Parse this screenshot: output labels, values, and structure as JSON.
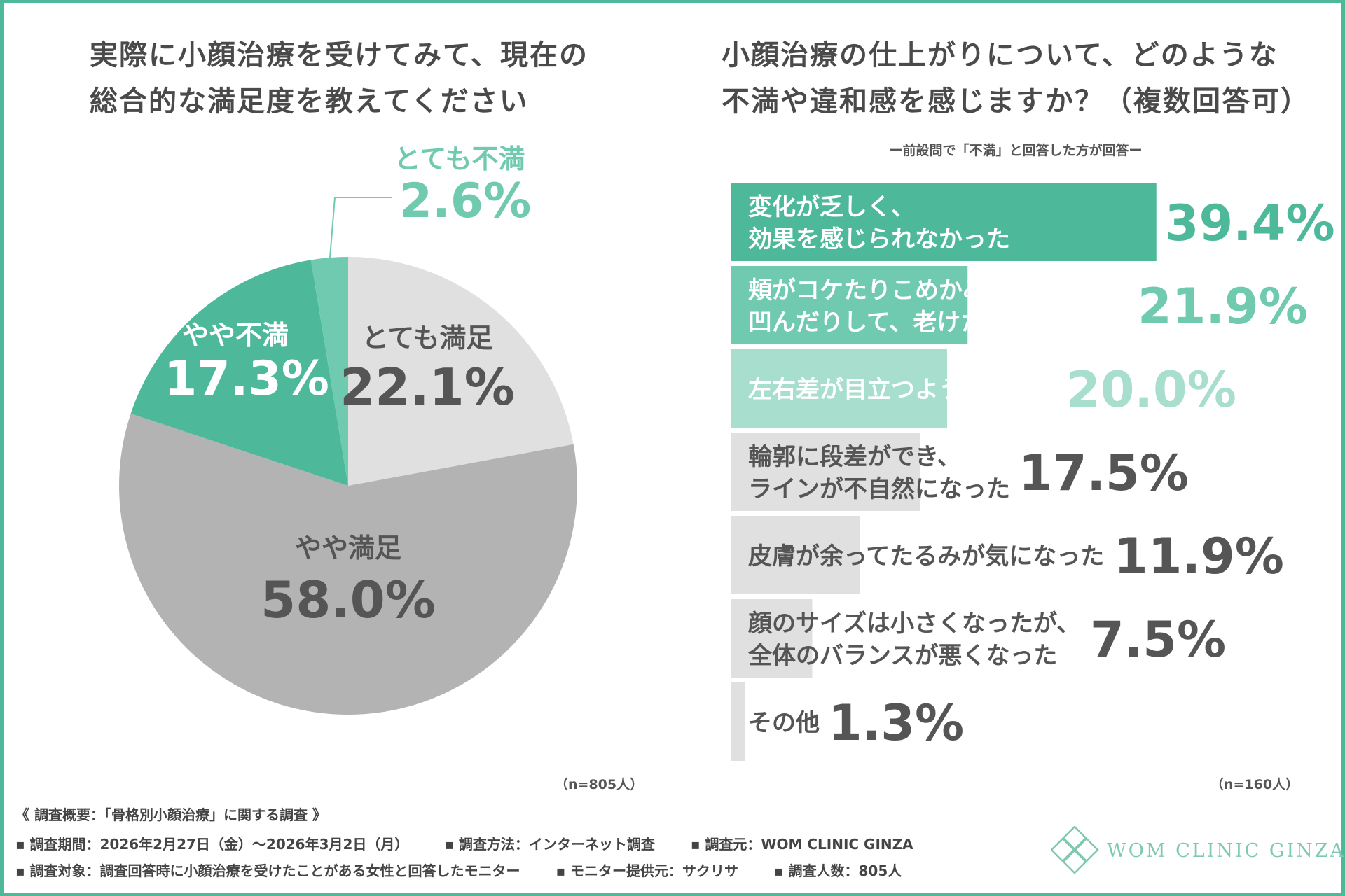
{
  "left_title_line1": "実際に小顔治療を受けてみて、現在の",
  "left_title_line2": "総合的な満足度を教えてください",
  "right_title_line1": "小顔治療の仕上がりについて、どのような",
  "right_title_line2": "不満や違和感を感じますか？（複数回答可）",
  "right_subnote": "ー前設問で「不満」と回答した方が回答ー",
  "n_left": "（n=805人）",
  "n_right": "（n=160人）",
  "footer": {
    "heading": "《 調査概要：「骨格別小顔治療」に関する調査 》",
    "period": "▪ 調査期間：2026年2月27日（金）～2026年3月2日（月）",
    "method": "▪ 調査方法：インターネット調査",
    "source": "▪ 調査元：WOM CLINIC GINZA",
    "target": "▪ 調査対象：調査回答時に小顔治療を受けたことがある女性と回答したモニター",
    "provider": "▪ モニター提供元：サクリサ",
    "count": "▪ 調査人数：805人"
  },
  "logo_text": "WOM CLINIC GINZA",
  "colors": {
    "border": "#4db89a",
    "green_dark": "#4db89a",
    "green_mid": "#6fcaaf",
    "green_light": "#a8dece",
    "gray_light": "#e0e0e0",
    "gray_mid": "#b3b3b3",
    "text_dark": "#555555"
  },
  "chart_data": [
    {
      "type": "pie",
      "title": "実際に小顔治療を受けてみて、現在の総合的な満足度を教えてください",
      "start": "12 o'clock, clockwise",
      "slices": [
        {
          "label": "とても満足",
          "value": 22.1,
          "value_label": "22.1%",
          "color": "#e0e0e0",
          "text_color": "#555555"
        },
        {
          "label": "やや満足",
          "value": 58.0,
          "value_label": "58.0%",
          "color": "#b3b3b3",
          "text_color": "#555555"
        },
        {
          "label": "やや不満",
          "value": 17.3,
          "value_label": "17.3%",
          "color": "#4db89a",
          "text_color": "#ffffff"
        },
        {
          "label": "とても不満",
          "value": 2.6,
          "value_label": "2.6%",
          "color": "#6fcaaf",
          "text_color": "#6fcaaf",
          "callout": true
        }
      ],
      "note": "（n=805人）"
    },
    {
      "type": "bar",
      "orientation": "horizontal",
      "title": "小顔治療の仕上がりについて、どのような不満や違和感を感じますか？（複数回答可）",
      "xlim": [
        0,
        50
      ],
      "categories": [
        [
          "変化が乏しく、",
          "効果を感じられなかった"
        ],
        [
          "頬がコケたりこめかみが",
          "凹んだりして、老けた印象になった"
        ],
        [
          "左右差が目立つようになった"
        ],
        [
          "輪郭に段差ができ、",
          "ラインが不自然になった"
        ],
        [
          "皮膚が余ってたるみが気になった"
        ],
        [
          "顔のサイズは小さくなったが、",
          "全体のバランスが悪くなった"
        ],
        [
          "その他"
        ]
      ],
      "values": [
        39.4,
        21.9,
        20.0,
        17.5,
        11.9,
        7.5,
        1.3
      ],
      "value_labels": [
        "39.4%",
        "21.9%",
        "20.0%",
        "17.5%",
        "11.9%",
        "7.5%",
        "1.3%"
      ],
      "bar_colors": [
        "#4db89a",
        "#6fcaaf",
        "#a8dece",
        "#e0e0e0",
        "#e0e0e0",
        "#e0e0e0",
        "#e0e0e0"
      ],
      "label_colors": [
        "#ffffff",
        "#ffffff",
        "#ffffff",
        "#555555",
        "#555555",
        "#555555",
        "#555555"
      ],
      "value_colors": [
        "#4db89a",
        "#6fcaaf",
        "#a8dece",
        "#555555",
        "#555555",
        "#555555",
        "#555555"
      ],
      "note": "（n=160人）"
    }
  ]
}
